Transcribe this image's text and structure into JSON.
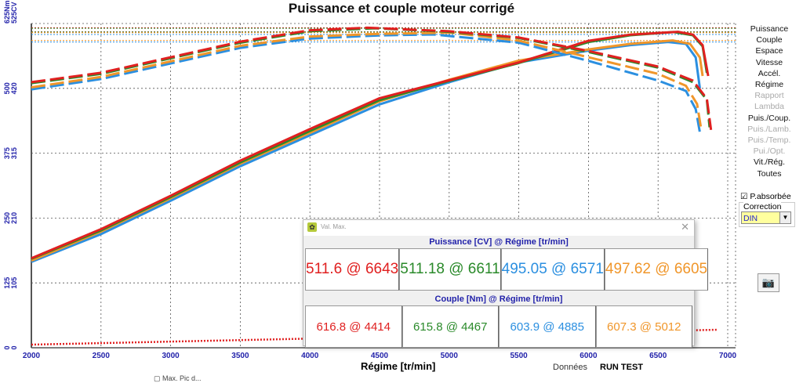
{
  "title": "Puissance et couple moteur corrigé",
  "chart_data": {
    "type": "line",
    "title": "Puissance et couple moteur corrigé",
    "xlabel": "Régime [tr/min]",
    "xlim": [
      2000,
      7000
    ],
    "xticks": [
      "2000",
      "2500",
      "3000",
      "3500",
      "4000",
      "4500",
      "5000",
      "5500",
      "6000",
      "6500",
      "7000"
    ],
    "y_left_nm_ticks": [
      "0",
      "125",
      "250",
      "375",
      "500",
      "625Nm"
    ],
    "y_left_cv_ticks": [
      "0",
      "105",
      "210",
      "315",
      "420",
      "525CV"
    ],
    "ylim_nm": [
      0,
      625
    ],
    "ylim_cv": [
      0,
      525
    ],
    "grid": true,
    "series": [
      {
        "color": "#e02020",
        "kind": "power_cv",
        "points": [
          [
            2000,
            145
          ],
          [
            2500,
            192
          ],
          [
            3000,
            246
          ],
          [
            3500,
            303
          ],
          [
            4000,
            354
          ],
          [
            4500,
            404
          ],
          [
            5000,
            433
          ],
          [
            5500,
            462
          ],
          [
            6000,
            497
          ],
          [
            6300,
            507
          ],
          [
            6643,
            511.6
          ],
          [
            6750,
            507
          ],
          [
            6820,
            490
          ],
          [
            6860,
            440
          ]
        ]
      },
      {
        "color": "#2a8a2a",
        "kind": "power_cv",
        "points": [
          [
            2000,
            144
          ],
          [
            2500,
            190
          ],
          [
            3000,
            244
          ],
          [
            3500,
            300
          ],
          [
            4000,
            351
          ],
          [
            4500,
            401
          ],
          [
            5000,
            432
          ],
          [
            5500,
            461
          ],
          [
            6000,
            495
          ],
          [
            6300,
            506
          ],
          [
            6611,
            511.18
          ],
          [
            6750,
            506
          ],
          [
            6820,
            488
          ],
          [
            6850,
            445
          ]
        ]
      },
      {
        "color": "#f0962a",
        "kind": "power_cv",
        "points": [
          [
            2000,
            141
          ],
          [
            2500,
            188
          ],
          [
            3000,
            242
          ],
          [
            3500,
            298
          ],
          [
            4000,
            348
          ],
          [
            4500,
            399
          ],
          [
            5000,
            434
          ],
          [
            5500,
            465
          ],
          [
            6000,
            483
          ],
          [
            6300,
            492
          ],
          [
            6605,
            497.62
          ],
          [
            6730,
            492
          ],
          [
            6800,
            470
          ],
          [
            6820,
            440
          ]
        ]
      },
      {
        "color": "#2b8fe0",
        "kind": "power_cv",
        "points": [
          [
            2000,
            139
          ],
          [
            2500,
            184
          ],
          [
            3000,
            238
          ],
          [
            3500,
            294
          ],
          [
            4000,
            344
          ],
          [
            4500,
            394
          ],
          [
            5000,
            430
          ],
          [
            5500,
            462
          ],
          [
            6000,
            481
          ],
          [
            6300,
            490
          ],
          [
            6571,
            495.05
          ],
          [
            6700,
            492
          ],
          [
            6770,
            470
          ],
          [
            6800,
            420
          ]
        ]
      },
      {
        "color": "#e02020",
        "kind": "torque_nm",
        "points": [
          [
            2000,
            512
          ],
          [
            2500,
            530
          ],
          [
            3000,
            560
          ],
          [
            3500,
            590
          ],
          [
            4000,
            612
          ],
          [
            4414,
            616.8
          ],
          [
            5000,
            610
          ],
          [
            5500,
            598
          ],
          [
            6000,
            572
          ],
          [
            6500,
            542
          ],
          [
            6750,
            515
          ],
          [
            6850,
            480
          ],
          [
            6880,
            420
          ]
        ]
      },
      {
        "color": "#2a8a2a",
        "kind": "torque_nm",
        "points": [
          [
            2000,
            510
          ],
          [
            2500,
            528
          ],
          [
            3000,
            558
          ],
          [
            3500,
            588
          ],
          [
            4000,
            610
          ],
          [
            4467,
            615.8
          ],
          [
            5000,
            609
          ],
          [
            5500,
            597
          ],
          [
            6000,
            570
          ],
          [
            6500,
            540
          ],
          [
            6750,
            512
          ],
          [
            6850,
            478
          ],
          [
            6870,
            425
          ]
        ]
      },
      {
        "color": "#f0962a",
        "kind": "torque_nm",
        "points": [
          [
            2000,
            502
          ],
          [
            2500,
            522
          ],
          [
            3000,
            552
          ],
          [
            3500,
            582
          ],
          [
            4000,
            600
          ],
          [
            4500,
            605
          ],
          [
            5012,
            607.3
          ],
          [
            5500,
            592
          ],
          [
            6000,
            560
          ],
          [
            6500,
            528
          ],
          [
            6700,
            505
          ],
          [
            6780,
            470
          ],
          [
            6810,
            420
          ]
        ]
      },
      {
        "color": "#2b8fe0",
        "kind": "torque_nm",
        "points": [
          [
            2000,
            498
          ],
          [
            2500,
            518
          ],
          [
            3000,
            548
          ],
          [
            3500,
            578
          ],
          [
            4000,
            596
          ],
          [
            4500,
            602
          ],
          [
            4885,
            603.9
          ],
          [
            5500,
            588
          ],
          [
            6000,
            553
          ],
          [
            6500,
            515
          ],
          [
            6700,
            495
          ],
          [
            6770,
            460
          ],
          [
            6800,
            415
          ]
        ]
      }
    ]
  },
  "axis": {
    "xlabel": "Régime [tr/min]"
  },
  "status": {
    "donnees_label": "Données",
    "run": "RUN TEST",
    "footer": "▢ Max. Pic d..."
  },
  "menu": [
    {
      "label": "Puissance",
      "enabled": true
    },
    {
      "label": "Couple",
      "enabled": true
    },
    {
      "label": "Espace",
      "enabled": true
    },
    {
      "label": "Vitesse",
      "enabled": true
    },
    {
      "label": "Accél.",
      "enabled": true
    },
    {
      "label": "Régime",
      "enabled": true
    },
    {
      "label": "Rapport",
      "enabled": false
    },
    {
      "label": "Lambda",
      "enabled": false
    },
    {
      "label": "Puis./Coup.",
      "enabled": true
    },
    {
      "label": "Puis./Lamb.",
      "enabled": false
    },
    {
      "label": "Puis./Temp.",
      "enabled": false
    },
    {
      "label": "Pui./Opt.",
      "enabled": false
    },
    {
      "label": "Vit./Rég.",
      "enabled": true
    },
    {
      "label": "Toutes",
      "enabled": true
    }
  ],
  "pabsorbee": {
    "label": "P.absorbée",
    "checked": true
  },
  "correction": {
    "label": "Correction",
    "value": "DIN"
  },
  "camera_icon": "camera-icon",
  "dialog": {
    "title": "Val. Max.",
    "power_header": "Puissance  [CV] @ Régime [tr/min]",
    "torque_header": "Couple  [Nm] @ Régime [tr/min]",
    "power": [
      {
        "text": "511.6 @ 6643",
        "color": "#e02020"
      },
      {
        "text": "511.18 @ 6611",
        "color": "#2a8a2a"
      },
      {
        "text": "495.05 @ 6571",
        "color": "#2b8fe0"
      },
      {
        "text": "497.62 @ 6605",
        "color": "#f0962a"
      }
    ],
    "torque": [
      {
        "text": "616.8 @ 4414",
        "color": "#e02020"
      },
      {
        "text": "615.8 @ 4467",
        "color": "#2a8a2a"
      },
      {
        "text": "603.9 @ 4885",
        "color": "#2b8fe0"
      },
      {
        "text": "607.3 @ 5012",
        "color": "#f0962a"
      }
    ]
  }
}
